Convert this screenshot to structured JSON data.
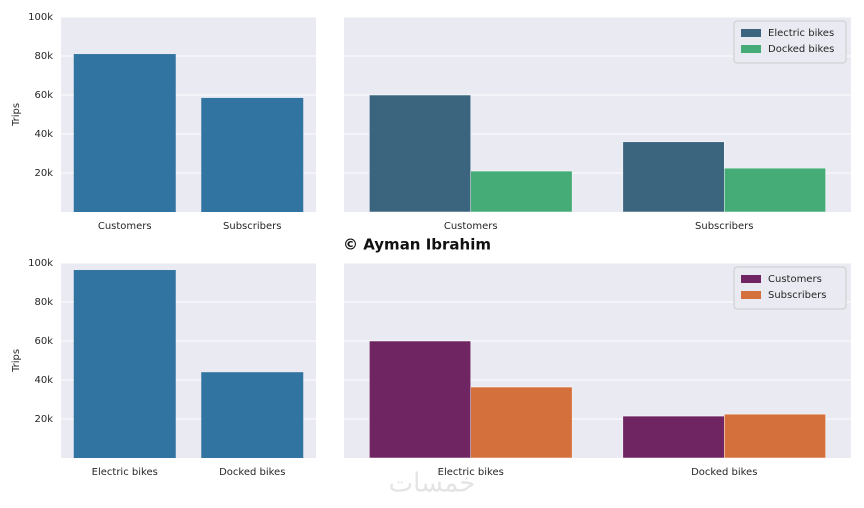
{
  "caption": "© Ayman Ibrahim",
  "watermark": "خمسات",
  "chart_data": [
    {
      "type": "bar",
      "ylabel": "Trips",
      "categories": [
        "Customers",
        "Subscribers"
      ],
      "values": [
        81000,
        58500
      ],
      "color": "#3274a1",
      "ylim": [
        0,
        100000
      ],
      "yticks": [
        {
          "value": 20000,
          "label": "20k"
        },
        {
          "value": 40000,
          "label": "40k"
        },
        {
          "value": 60000,
          "label": "60k"
        },
        {
          "value": 80000,
          "label": "80k"
        },
        {
          "value": 100000,
          "label": "100k"
        }
      ],
      "grid": true
    },
    {
      "type": "bar",
      "categories": [
        "Customers",
        "Subscribers"
      ],
      "series": [
        {
          "name": "Electric bikes",
          "color": "#3b657f",
          "values": [
            60000,
            36000
          ]
        },
        {
          "name": "Docked bikes",
          "color": "#45ac78",
          "values": [
            21000,
            22500
          ]
        }
      ],
      "ylim": [
        0,
        100000
      ],
      "yticks": [
        20000,
        40000,
        60000,
        80000,
        100000
      ],
      "grid": true,
      "legend": "upper right"
    },
    {
      "type": "bar",
      "ylabel": "Trips",
      "categories": [
        "Electric bikes",
        "Docked bikes"
      ],
      "values": [
        96400,
        44000
      ],
      "color": "#3274a1",
      "ylim": [
        0,
        100000
      ],
      "yticks": [
        {
          "value": 20000,
          "label": "20k"
        },
        {
          "value": 40000,
          "label": "40k"
        },
        {
          "value": 60000,
          "label": "60k"
        },
        {
          "value": 80000,
          "label": "80k"
        },
        {
          "value": 100000,
          "label": "100k"
        }
      ],
      "grid": true
    },
    {
      "type": "bar",
      "categories": [
        "Electric bikes",
        "Docked bikes"
      ],
      "series": [
        {
          "name": "Customers",
          "color": "#6e2562",
          "values": [
            60000,
            21500
          ]
        },
        {
          "name": "Subscribers",
          "color": "#d4703b",
          "values": [
            36400,
            22500
          ]
        }
      ],
      "ylim": [
        0,
        100000
      ],
      "yticks": [
        20000,
        40000,
        60000,
        80000,
        100000
      ],
      "grid": true,
      "legend": "upper right"
    }
  ]
}
